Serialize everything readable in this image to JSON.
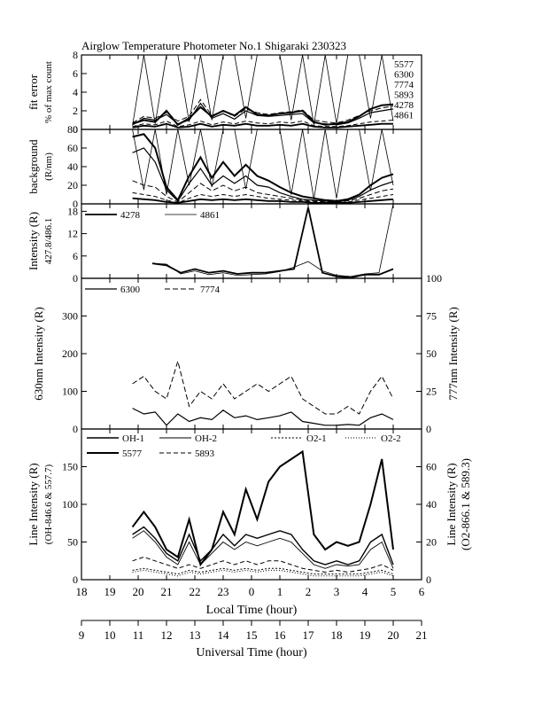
{
  "title": "Airglow Temperature Photometer No.1  Shigaraki  230323",
  "x_axis_local": {
    "label": "Local Time (hour)",
    "range": [
      18,
      30
    ],
    "tick_labels": [
      "18",
      "19",
      "20",
      "21",
      "22",
      "23",
      "0",
      "1",
      "2",
      "3",
      "4",
      "5",
      "6"
    ]
  },
  "x_axis_ut": {
    "label": "Universal Time (hour)",
    "range": [
      9,
      21
    ],
    "tick_labels": [
      "9",
      "10",
      "11",
      "12",
      "13",
      "14",
      "15",
      "16",
      "17",
      "18",
      "19",
      "20",
      "21"
    ]
  },
  "chart_data": [
    {
      "type": "line",
      "panel": "fit-error",
      "ylabel": [
        "fit error",
        "% of max count"
      ],
      "ylim": [
        0,
        8
      ],
      "yticks": [
        "0",
        "2",
        "4",
        "6",
        "8"
      ],
      "legend": [
        "5577",
        "6300",
        "7774",
        "5893",
        "4278",
        "4861"
      ],
      "x": [
        19.8,
        20.2,
        20.6,
        21.0,
        21.4,
        21.8,
        22.2,
        22.6,
        23.0,
        23.4,
        23.8,
        24.2,
        24.6,
        25.0,
        25.4,
        25.8,
        26.2,
        26.6,
        27.0,
        27.4,
        27.8,
        28.2,
        28.6,
        29.0
      ],
      "series": [
        {
          "name": "5577",
          "values": [
            0.6,
            1.0,
            0.8,
            2.0,
            0.5,
            1.2,
            2.4,
            1.4,
            2.0,
            1.5,
            2.4,
            1.6,
            1.5,
            1.7,
            1.8,
            2.0,
            0.8,
            0.5,
            0.6,
            0.8,
            1.4,
            2.2,
            2.6,
            2.7
          ]
        },
        {
          "name": "6300",
          "values": [
            0.5,
            1.2,
            1.0,
            1.6,
            0.6,
            1.0,
            2.8,
            1.2,
            1.7,
            1.1,
            2.0,
            1.5,
            1.4,
            1.5,
            1.6,
            1.7,
            0.7,
            0.6,
            0.5,
            0.7,
            1.2,
            1.8,
            2.0,
            2.2
          ]
        },
        {
          "name": "7774",
          "values": [
            0.7,
            1.4,
            1.2,
            1.8,
            0.9,
            1.4,
            3.2,
            1.5,
            2.0,
            1.4,
            2.2,
            1.8,
            1.6,
            1.8,
            1.9,
            2.1,
            1.0,
            0.8,
            0.7,
            1.0,
            1.5,
            2.0,
            2.3,
            2.5
          ]
        },
        {
          "name": "5893",
          "values": [
            0.3,
            0.6,
            0.5,
            0.9,
            0.3,
            0.5,
            0.9,
            0.5,
            0.8,
            0.6,
            0.9,
            0.7,
            0.6,
            0.8,
            0.7,
            0.9,
            0.4,
            0.3,
            0.3,
            0.4,
            0.6,
            0.8,
            0.9,
            1.0
          ]
        },
        {
          "name": "4278",
          "values": [
            0.2,
            0.4,
            0.3,
            0.6,
            0.2,
            0.3,
            0.6,
            0.3,
            0.5,
            0.4,
            0.6,
            0.4,
            0.4,
            0.5,
            0.4,
            0.6,
            0.3,
            0.2,
            0.2,
            0.3,
            0.4,
            0.5,
            0.6,
            0.6
          ]
        },
        {
          "name": "4861",
          "values": [
            0.4,
            8,
            0.6,
            8,
            8,
            0.8,
            8,
            1.0,
            8,
            8,
            1.2,
            8,
            8,
            8,
            1.0,
            8,
            0.5,
            8,
            0.6,
            8,
            8,
            1.2,
            8,
            0.9
          ]
        }
      ]
    },
    {
      "type": "line",
      "panel": "background",
      "ylabel": [
        "background",
        "(R/nm)"
      ],
      "ylim": [
        0,
        80
      ],
      "yticks": [
        "0",
        "20",
        "40",
        "60",
        "80"
      ],
      "x": [
        19.8,
        20.2,
        20.6,
        21.0,
        21.4,
        21.8,
        22.2,
        22.6,
        23.0,
        23.4,
        23.8,
        24.2,
        24.6,
        25.0,
        25.4,
        25.8,
        26.2,
        26.6,
        27.0,
        27.4,
        27.8,
        28.2,
        28.6,
        29.0
      ],
      "series": [
        {
          "name": "5577",
          "values": [
            72,
            75,
            60,
            18,
            4,
            30,
            50,
            28,
            45,
            30,
            42,
            30,
            25,
            18,
            12,
            8,
            6,
            4,
            3,
            5,
            10,
            20,
            28,
            32
          ]
        },
        {
          "name": "6300",
          "values": [
            55,
            60,
            45,
            15,
            3,
            22,
            38,
            20,
            30,
            22,
            30,
            20,
            18,
            12,
            8,
            5,
            4,
            3,
            2,
            4,
            8,
            15,
            20,
            24
          ]
        },
        {
          "name": "7774",
          "values": [
            25,
            20,
            18,
            8,
            2,
            12,
            22,
            14,
            20,
            14,
            18,
            12,
            10,
            8,
            6,
            4,
            3,
            2,
            2,
            3,
            6,
            10,
            14,
            16
          ]
        },
        {
          "name": "5893",
          "values": [
            12,
            10,
            8,
            4,
            1,
            6,
            10,
            8,
            10,
            8,
            10,
            8,
            6,
            5,
            4,
            3,
            2,
            2,
            1,
            2,
            4,
            6,
            8,
            10
          ]
        },
        {
          "name": "4278",
          "values": [
            6,
            5,
            4,
            2,
            1,
            3,
            5,
            4,
            5,
            4,
            5,
            4,
            3,
            3,
            2,
            2,
            1,
            1,
            1,
            1,
            2,
            3,
            4,
            5
          ]
        },
        {
          "name": "4861",
          "values": [
            80,
            15,
            80,
            10,
            80,
            20,
            80,
            18,
            80,
            80,
            16,
            80,
            80,
            80,
            10,
            80,
            5,
            80,
            6,
            80,
            80,
            14,
            80,
            20
          ]
        }
      ]
    },
    {
      "type": "line",
      "panel": "intensity-4278-4861",
      "ylabel": [
        "Intensity (R)",
        "427.8/486.1"
      ],
      "ylim": [
        0,
        20
      ],
      "yticks": [
        "0",
        "6",
        "12",
        "18"
      ],
      "legend": [
        "4278",
        "4861"
      ],
      "x": [
        20.5,
        21.0,
        21.5,
        22.0,
        22.5,
        23.0,
        23.5,
        24.0,
        24.5,
        25.0,
        25.5,
        26.0,
        26.5,
        27.0,
        27.5,
        28.0,
        28.5,
        29.0
      ],
      "series": [
        {
          "name": "4278",
          "values": [
            4,
            3.5,
            1.5,
            2.5,
            1.5,
            2,
            1.2,
            1.5,
            1.5,
            2.0,
            2.5,
            19,
            1.5,
            0.5,
            0.2,
            1.0,
            1.0,
            2.5
          ]
        },
        {
          "name": "4861",
          "values": [
            4,
            3.8,
            1.2,
            2.0,
            1.0,
            1.5,
            0.8,
            1.0,
            1.2,
            1.8,
            3.0,
            4.5,
            2.0,
            0.8,
            0.5,
            1.2,
            1.5,
            20
          ]
        }
      ]
    },
    {
      "type": "line",
      "panel": "630nm-777nm",
      "ylabel": "630nm Intensity (R)",
      "ylim": [
        0,
        400
      ],
      "yticks": [
        "0",
        "100",
        "200",
        "300"
      ],
      "y2label": "777nm Intensity (R)",
      "y2lim": [
        0,
        100
      ],
      "y2ticks": [
        "0",
        "25",
        "50",
        "75",
        "100"
      ],
      "legend": [
        "6300",
        "7774"
      ],
      "x": [
        19.8,
        20.2,
        20.6,
        21.0,
        21.4,
        21.8,
        22.2,
        22.6,
        23.0,
        23.4,
        23.8,
        24.2,
        24.6,
        25.0,
        25.4,
        25.8,
        26.2,
        26.6,
        27.0,
        27.4,
        27.8,
        28.2,
        28.6,
        29.0
      ],
      "series": [
        {
          "name": "6300",
          "values": [
            55,
            40,
            45,
            10,
            40,
            20,
            30,
            25,
            50,
            30,
            35,
            25,
            30,
            35,
            45,
            20,
            15,
            10,
            10,
            12,
            10,
            30,
            40,
            25
          ]
        },
        {
          "name": "7774",
          "values": [
            30,
            35,
            25,
            20,
            45,
            15,
            25,
            20,
            30,
            20,
            25,
            30,
            25,
            30,
            35,
            20,
            15,
            10,
            10,
            15,
            10,
            25,
            35,
            20
          ]
        }
      ]
    },
    {
      "type": "line",
      "panel": "line-intensity",
      "ylabel": [
        "Line Intensity (R)",
        "(OH-846.6 & 557.7)"
      ],
      "ylim": [
        0,
        200
      ],
      "yticks": [
        "0",
        "50",
        "100",
        "150"
      ],
      "y2label": [
        "Line Intensity (R)",
        "(O2-866.1 & 589.3)"
      ],
      "y2lim": [
        0,
        80
      ],
      "y2ticks": [
        "0",
        "20",
        "40",
        "60"
      ],
      "legend": [
        "OH-1",
        "OH-2",
        "O2-1",
        "O2-2",
        "5577",
        "5893"
      ],
      "x": [
        19.8,
        20.2,
        20.6,
        21.0,
        21.4,
        21.8,
        22.2,
        22.6,
        23.0,
        23.4,
        23.8,
        24.2,
        24.6,
        25.0,
        25.4,
        25.8,
        26.2,
        26.6,
        27.0,
        27.4,
        27.8,
        28.2,
        28.6,
        29.0
      ],
      "series": [
        {
          "name": "5577",
          "values": [
            70,
            90,
            70,
            40,
            30,
            80,
            20,
            40,
            90,
            60,
            120,
            80,
            130,
            150,
            160,
            170,
            60,
            40,
            50,
            45,
            50,
            100,
            160,
            40
          ]
        },
        {
          "name": "OH-1",
          "values": [
            60,
            70,
            55,
            35,
            25,
            60,
            25,
            40,
            60,
            45,
            60,
            55,
            60,
            65,
            60,
            40,
            25,
            20,
            25,
            20,
            25,
            50,
            60,
            20
          ]
        },
        {
          "name": "OH-2",
          "values": [
            55,
            65,
            50,
            30,
            20,
            50,
            20,
            35,
            50,
            40,
            50,
            45,
            50,
            55,
            50,
            35,
            20,
            15,
            20,
            18,
            20,
            40,
            50,
            15
          ]
        },
        {
          "name": "5893",
          "values": [
            10,
            12,
            10,
            8,
            6,
            8,
            6,
            8,
            10,
            8,
            10,
            8,
            10,
            10,
            8,
            6,
            5,
            4,
            5,
            4,
            5,
            6,
            8,
            5
          ]
        },
        {
          "name": "O2-1",
          "values": [
            5,
            6,
            5,
            4,
            3,
            5,
            4,
            5,
            6,
            5,
            6,
            5,
            6,
            6,
            5,
            4,
            3,
            3,
            3,
            3,
            3,
            4,
            5,
            3
          ]
        },
        {
          "name": "O2-2",
          "values": [
            4,
            5,
            4,
            3,
            2,
            4,
            3,
            4,
            5,
            4,
            5,
            4,
            5,
            5,
            4,
            3,
            2,
            2,
            2,
            2,
            2,
            3,
            4,
            2
          ]
        }
      ]
    }
  ]
}
